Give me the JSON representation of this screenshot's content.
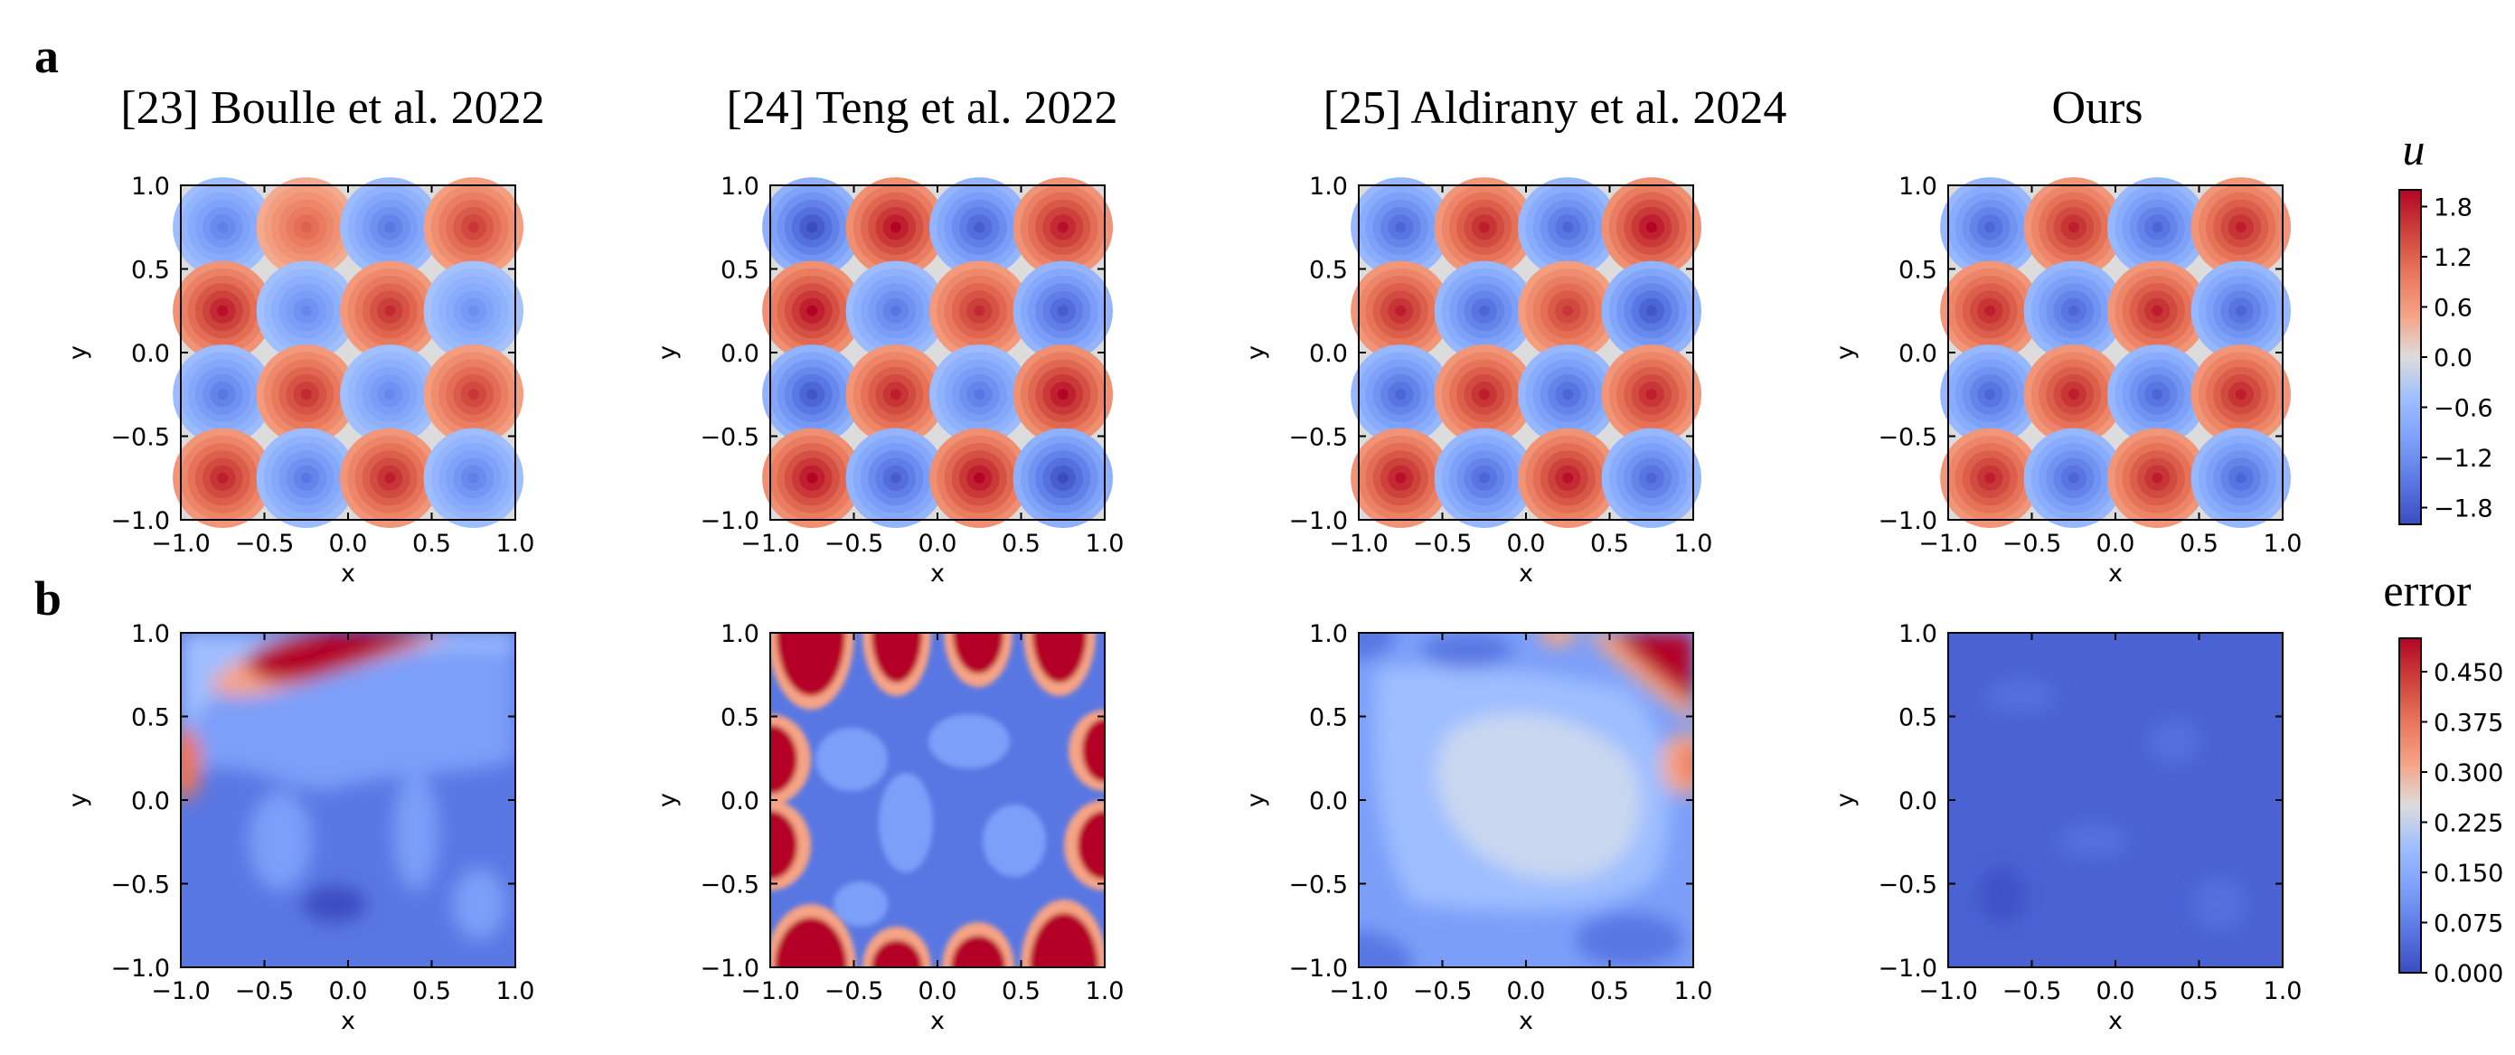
{
  "chart_data": {
    "panel_labels": [
      "a",
      "b"
    ],
    "column_titles": [
      "[23] Boulle et al. 2022",
      "[24] Teng et al. 2022",
      "[25] Aldirany et al. 2024",
      "Ours"
    ],
    "colorbars": [
      {
        "label": "u",
        "cmap": "coolwarm",
        "range": [
          -2.0,
          2.0
        ],
        "ticks": [
          "1.8",
          "1.2",
          "0.6",
          "0.0",
          "−0.6",
          "−1.2",
          "−1.8"
        ],
        "tick_values": [
          1.8,
          1.2,
          0.6,
          0.0,
          -0.6,
          -1.2,
          -1.8
        ]
      },
      {
        "label": "error",
        "cmap": "coolwarm",
        "range": [
          0.0,
          0.5
        ],
        "ticks": [
          "0.450",
          "0.375",
          "0.300",
          "0.225",
          "0.150",
          "0.075",
          "0.000"
        ],
        "tick_values": [
          0.45,
          0.375,
          0.3,
          0.225,
          0.15,
          0.075,
          0.0
        ]
      }
    ],
    "charts": [
      {
        "row": "a",
        "type": "heatmap",
        "title": "[23] Boulle et al. 2022",
        "xlabel": "x",
        "ylabel": "y",
        "xlim": [
          -1,
          1
        ],
        "ylim": [
          -1,
          1
        ],
        "x_ticks": [
          "−1.0",
          "−0.5",
          "0.0",
          "0.5",
          "1.0"
        ],
        "y_ticks": [
          "1.0",
          "0.5",
          "0.0",
          "−0.5",
          "−1.0"
        ],
        "blob_centers": [
          -0.75,
          -0.25,
          0.25,
          0.75
        ],
        "blob_rows_top_to_bottom": [
          [
            -1.4,
            1.2,
            -1.5,
            1.6
          ],
          [
            1.9,
            -1.3,
            1.7,
            -1.2
          ],
          [
            -1.5,
            1.7,
            -1.3,
            1.6
          ],
          [
            1.8,
            -1.5,
            1.8,
            -1.4
          ]
        ]
      },
      {
        "row": "a",
        "type": "heatmap",
        "title": "[24] Teng et al. 2022",
        "xlabel": "x",
        "ylabel": "y",
        "xlim": [
          -1,
          1
        ],
        "ylim": [
          -1,
          1
        ],
        "x_ticks": [
          "−1.0",
          "−0.5",
          "0.0",
          "0.5",
          "1.0"
        ],
        "y_ticks": [
          "1.0",
          "0.5",
          "0.0",
          "−0.5",
          "−1.0"
        ],
        "blob_centers": [
          -0.75,
          -0.25,
          0.25,
          0.75
        ],
        "blob_rows_top_to_bottom": [
          [
            -2.0,
            2.0,
            -1.8,
            1.9
          ],
          [
            2.0,
            -1.5,
            1.7,
            -1.8
          ],
          [
            -1.9,
            1.8,
            -1.5,
            2.0
          ],
          [
            2.0,
            -1.8,
            2.0,
            -2.0
          ]
        ]
      },
      {
        "row": "a",
        "type": "heatmap",
        "title": "[25] Aldirany et al. 2024",
        "xlabel": "x",
        "ylabel": "y",
        "xlim": [
          -1,
          1
        ],
        "ylim": [
          -1,
          1
        ],
        "x_ticks": [
          "−1.0",
          "−0.5",
          "0.0",
          "0.5",
          "1.0"
        ],
        "y_ticks": [
          "1.0",
          "0.5",
          "0.0",
          "−0.5",
          "−1.0"
        ],
        "blob_centers": [
          -0.75,
          -0.25,
          0.25,
          0.75
        ],
        "blob_rows_top_to_bottom": [
          [
            -1.7,
            1.8,
            -1.7,
            2.0
          ],
          [
            1.8,
            -1.7,
            1.6,
            -1.9
          ],
          [
            -1.7,
            1.8,
            -1.7,
            1.8
          ],
          [
            1.9,
            -1.7,
            1.9,
            -1.7
          ]
        ]
      },
      {
        "row": "a",
        "type": "heatmap",
        "title": "Ours",
        "xlabel": "x",
        "ylabel": "y",
        "xlim": [
          -1,
          1
        ],
        "ylim": [
          -1,
          1
        ],
        "x_ticks": [
          "−1.0",
          "−0.5",
          "0.0",
          "0.5",
          "1.0"
        ],
        "y_ticks": [
          "1.0",
          "0.5",
          "0.0",
          "−0.5",
          "−1.0"
        ],
        "blob_centers": [
          -0.75,
          -0.25,
          0.25,
          0.75
        ],
        "blob_rows_top_to_bottom": [
          [
            -1.7,
            1.8,
            -1.7,
            1.8
          ],
          [
            1.8,
            -1.7,
            1.8,
            -1.7
          ],
          [
            -1.7,
            1.8,
            -1.7,
            1.8
          ],
          [
            1.8,
            -1.7,
            1.8,
            -1.7
          ]
        ]
      },
      {
        "row": "b",
        "type": "heatmap",
        "title": "[23] Boulle et al. 2022",
        "xlabel": "x",
        "ylabel": "y",
        "xlim": [
          -1,
          1
        ],
        "ylim": [
          -1,
          1
        ],
        "x_ticks": [
          "−1.0",
          "−0.5",
          "0.0",
          "0.5",
          "1.0"
        ],
        "y_ticks": [
          "1.0",
          "0.5",
          "0.0",
          "−0.5",
          "−1.0"
        ],
        "error_profile": "high error (>0.45) along top edge from x=-0.9 to 0.5, moderate on left edge near y=0.3, low elsewhere (0.05-0.15)"
      },
      {
        "row": "b",
        "type": "heatmap",
        "title": "[24] Teng et al. 2022",
        "xlabel": "x",
        "ylabel": "y",
        "xlim": [
          -1,
          1
        ],
        "ylim": [
          -1,
          1
        ],
        "x_ticks": [
          "−1.0",
          "−0.5",
          "0.0",
          "0.5",
          "1.0"
        ],
        "y_ticks": [
          "1.0",
          "0.5",
          "0.0",
          "−0.5",
          "−1.0"
        ],
        "error_profile": "high error (>0.45) in blobs along all four boundaries, low interior (0.05-0.15)"
      },
      {
        "row": "b",
        "type": "heatmap",
        "title": "[25] Aldirany et al. 2024",
        "xlabel": "x",
        "ylabel": "y",
        "xlim": [
          -1,
          1
        ],
        "ylim": [
          -1,
          1
        ],
        "x_ticks": [
          "−1.0",
          "−0.5",
          "0.0",
          "0.5",
          "1.0"
        ],
        "y_ticks": [
          "1.0",
          "0.5",
          "0.0",
          "−0.5",
          "−1.0"
        ],
        "error_profile": "high error at top-right corner, moderate on right edge near y=0.25, broad moderate region (0.15-0.25) in center"
      },
      {
        "row": "b",
        "type": "heatmap",
        "title": "Ours",
        "xlabel": "x",
        "ylabel": "y",
        "xlim": [
          -1,
          1
        ],
        "ylim": [
          -1,
          1
        ],
        "x_ticks": [
          "−1.0",
          "−0.5",
          "0.0",
          "0.5",
          "1.0"
        ],
        "y_ticks": [
          "1.0",
          "0.5",
          "0.0",
          "−0.5",
          "−1.0"
        ],
        "error_profile": "uniformly low error (about 0.02-0.06) everywhere"
      }
    ]
  }
}
